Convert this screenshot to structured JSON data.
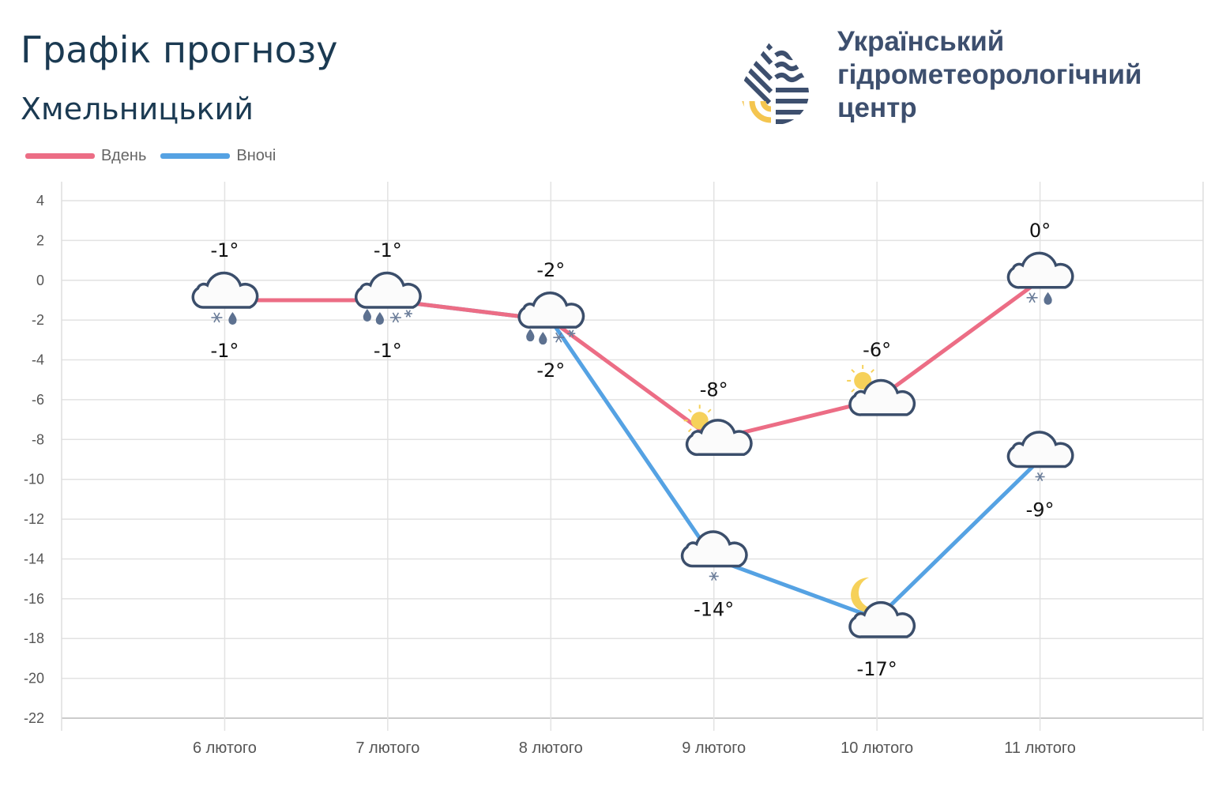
{
  "header": {
    "title": "Графік прогнозу",
    "city": "Хмельницький"
  },
  "organization": {
    "name_line1": "Український",
    "name_line2": "гідрометеорологічний",
    "name_line3": "центр"
  },
  "colors": {
    "day": "#ec6d85",
    "night": "#55a2e3",
    "logo_dark": "#3d4f6e",
    "logo_yellow": "#f4c54f"
  },
  "chart_data": {
    "type": "line",
    "categories": [
      "6 лютого",
      "7 лютого",
      "8 лютого",
      "9 лютого",
      "10 лютого",
      "11 лютого"
    ],
    "series": [
      {
        "name": "Вдень",
        "color": "#ec6d85",
        "values": [
          -1,
          -1,
          -2,
          -8,
          -6,
          0
        ],
        "labels": [
          "-1°",
          "-1°",
          "-2°",
          "-8°",
          "-6°",
          "0°"
        ],
        "icons": [
          "cloud-snow-rain",
          "cloud-rain-snow",
          "cloud-rain-snow",
          "partly-cloudy-sun",
          "partly-cloudy-sun",
          "cloud-snow-rain"
        ]
      },
      {
        "name": "Вночі",
        "color": "#55a2e3",
        "values": [
          -1,
          -1,
          -2,
          -14,
          -17,
          -9
        ],
        "labels": [
          "-1°",
          "-1°",
          "-2°",
          "-14°",
          "-17°",
          "-9°"
        ],
        "icons": [
          "cloud-snow-rain",
          "cloud-rain-snow",
          "cloud-rain-snow",
          "cloud-snow",
          "partly-cloudy-moon",
          "cloud-snow"
        ]
      }
    ],
    "ylim": [
      -22,
      4
    ],
    "yticks": [
      4,
      2,
      0,
      -2,
      -4,
      -6,
      -8,
      -10,
      -12,
      -14,
      -16,
      -18,
      -20,
      -22
    ],
    "grid": true,
    "legend": "top-left"
  }
}
